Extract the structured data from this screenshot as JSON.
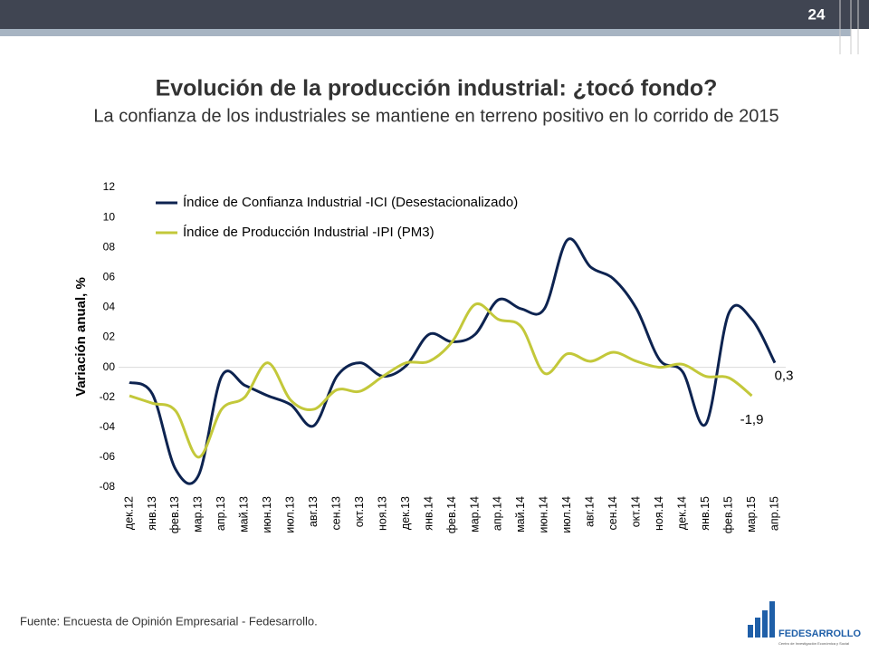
{
  "page_number": "24",
  "source": "Fuente: Encuesta de Opinión Empresarial - Fedesarrollo.",
  "logo": {
    "name": "FEDESARROLLO",
    "tagline": "Centro de Investigación Económica y Social"
  },
  "chart_data": {
    "type": "line",
    "title": "Evolución de la producción industrial: ¿tocó fondo?",
    "subtitle": "La confianza de los industriales se mantiene en terreno positivo en lo corrido de 2015",
    "y_label": "Variación anual, %",
    "categories": [
      "дек.12",
      "янв.13",
      "фев.13",
      "мар.13",
      "апр.13",
      "май.13",
      "июн.13",
      "июл.13",
      "авг.13",
      "сен.13",
      "окт.13",
      "ноя.13",
      "дек.13",
      "янв.14",
      "фев.14",
      "мар.14",
      "апр.14",
      "май.14",
      "июн.14",
      "июл.14",
      "авг.14",
      "сен.14",
      "окт.14",
      "ноя.14",
      "дек.14",
      "янв.15",
      "фев.15",
      "мар.15",
      "апр.15"
    ],
    "series": [
      {
        "name": "Índice de Confianza Industrial -ICI (Desestacionalizado)",
        "color": "#0d2350",
        "values": [
          -1.0,
          -1.8,
          -6.8,
          -7.2,
          -0.6,
          -1.2,
          -1.9,
          -2.5,
          -3.9,
          -0.6,
          0.3,
          -0.6,
          0.1,
          2.2,
          1.7,
          2.2,
          4.5,
          3.9,
          3.9,
          8.5,
          6.7,
          5.9,
          3.9,
          0.5,
          -0.3,
          -3.8,
          3.6,
          3.2,
          0.3
        ],
        "value_labels": [
          null,
          null,
          null,
          null,
          null,
          null,
          null,
          null,
          null,
          null,
          null,
          null,
          null,
          null,
          null,
          null,
          null,
          null,
          null,
          null,
          null,
          null,
          null,
          null,
          null,
          null,
          null,
          null,
          "0,3"
        ]
      },
      {
        "name": "Índice de Producción Industrial -IPI (PM3)",
        "color": "#c3c83a",
        "values": [
          -1.9,
          -2.4,
          -2.9,
          -6.0,
          -2.8,
          -2.0,
          0.3,
          -2.2,
          -2.8,
          -1.5,
          -1.6,
          -0.6,
          0.3,
          0.4,
          1.7,
          4.2,
          3.2,
          2.7,
          -0.4,
          0.9,
          0.4,
          1.0,
          0.4,
          0.0,
          0.2,
          -0.6,
          -0.7,
          -1.9,
          null
        ],
        "value_labels": [
          null,
          null,
          null,
          null,
          null,
          null,
          null,
          null,
          null,
          null,
          null,
          null,
          null,
          null,
          null,
          null,
          null,
          null,
          null,
          null,
          null,
          null,
          null,
          null,
          null,
          null,
          null,
          "-1,9",
          null
        ]
      }
    ],
    "ylim": [
      -8,
      12
    ],
    "yticks": [
      12,
      10,
      {
        "value": 8,
        "label": "08"
      },
      {
        "value": 6,
        "label": "06"
      },
      {
        "value": 4,
        "label": "04"
      },
      {
        "value": 2,
        "label": "02"
      },
      {
        "value": 0,
        "label": "00"
      },
      {
        "value": -2,
        "label": "-02"
      },
      {
        "value": -4,
        "label": "-04"
      },
      {
        "value": -6,
        "label": "-06"
      },
      {
        "value": -8,
        "label": "-08"
      }
    ],
    "legend": "top-left"
  }
}
